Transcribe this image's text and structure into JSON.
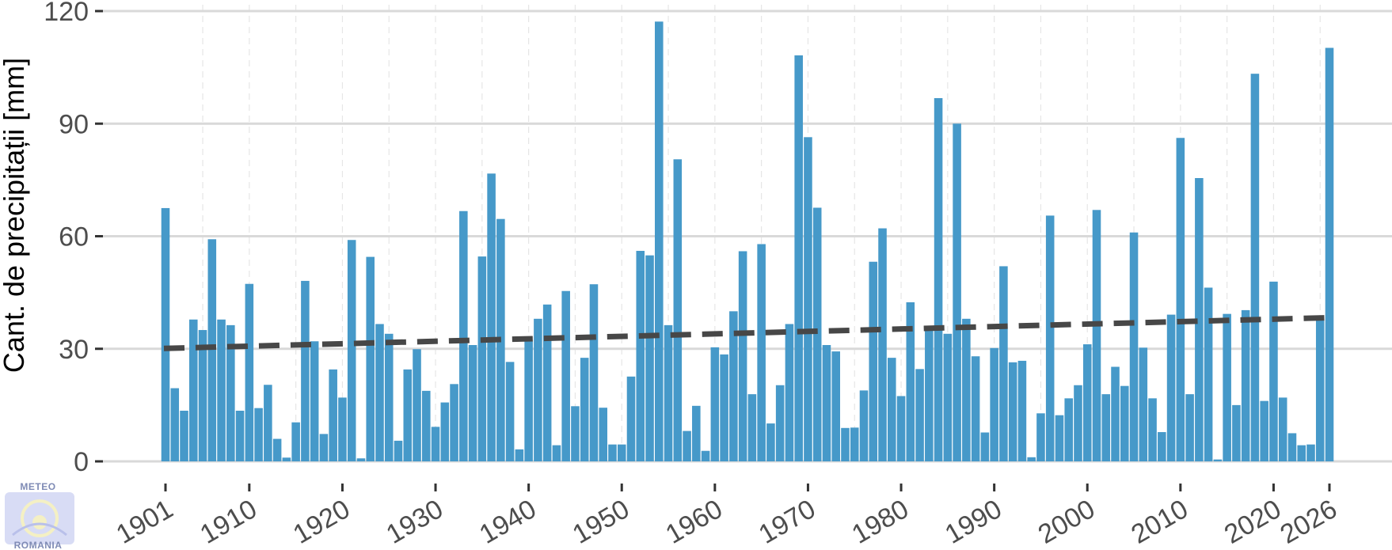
{
  "chart_data": {
    "type": "bar",
    "title": "",
    "xlabel": "",
    "ylabel": "Cant. de precipitații [mm]",
    "ylim": [
      0,
      120
    ],
    "yticks": [
      0,
      30,
      60,
      90,
      120
    ],
    "x_tick_labels": [
      "1901",
      "1910",
      "1920",
      "1930",
      "1940",
      "1950",
      "1960",
      "1970",
      "1980",
      "1990",
      "2000",
      "2010",
      "2020",
      "2026"
    ],
    "grid": true,
    "legend": "none",
    "colors": {
      "bar": "#4699c9",
      "trend": "#474747",
      "grid": "#d9d9d9"
    },
    "x": [
      1901,
      1902,
      1903,
      1904,
      1905,
      1906,
      1907,
      1908,
      1909,
      1910,
      1911,
      1912,
      1913,
      1914,
      1915,
      1916,
      1917,
      1918,
      1919,
      1920,
      1921,
      1922,
      1923,
      1924,
      1925,
      1926,
      1927,
      1928,
      1929,
      1930,
      1931,
      1932,
      1933,
      1934,
      1935,
      1936,
      1937,
      1938,
      1939,
      1940,
      1941,
      1942,
      1943,
      1944,
      1945,
      1946,
      1947,
      1948,
      1949,
      1950,
      1951,
      1952,
      1953,
      1954,
      1955,
      1956,
      1957,
      1958,
      1959,
      1960,
      1961,
      1962,
      1963,
      1964,
      1965,
      1966,
      1967,
      1968,
      1969,
      1970,
      1971,
      1972,
      1973,
      1974,
      1975,
      1976,
      1977,
      1978,
      1979,
      1980,
      1981,
      1982,
      1983,
      1984,
      1985,
      1986,
      1987,
      1988,
      1989,
      1990,
      1991,
      1992,
      1993,
      1994,
      1995,
      1996,
      1997,
      1998,
      1999,
      2000,
      2001,
      2002,
      2003,
      2004,
      2005,
      2006,
      2007,
      2008,
      2009,
      2010,
      2011,
      2012,
      2013,
      2014,
      2015,
      2016,
      2017,
      2018,
      2019,
      2020,
      2021,
      2022,
      2023,
      2024,
      2025,
      2026
    ],
    "values": [
      67.5,
      19.5,
      13.5,
      37.8,
      35,
      59.2,
      37.8,
      36.3,
      13.5,
      47.3,
      14.2,
      20.4,
      6,
      1,
      10.4,
      48.1,
      32,
      7.3,
      24.5,
      17,
      59,
      0.8,
      54.5,
      36.6,
      34,
      5.5,
      24.5,
      29.9,
      18.8,
      9.2,
      15.7,
      20.6,
      66.7,
      31,
      54.6,
      76.7,
      64.6,
      26.5,
      3.2,
      32.1,
      38,
      41.8,
      4.3,
      45.4,
      14.7,
      27.6,
      47.2,
      14.3,
      4.5,
      4.5,
      22.6,
      56.1,
      54.9,
      117.2,
      36.3,
      80.5,
      8.1,
      14.8,
      2.8,
      30.4,
      28.5,
      40,
      56,
      17.9,
      57.9,
      10.1,
      20.3,
      36.6,
      108.2,
      86.4,
      67.6,
      31,
      29.3,
      8.9,
      9,
      18.9,
      53.2,
      62.1,
      27.6,
      17.4,
      42.4,
      24.6,
      35.3,
      96.8,
      34,
      90,
      38,
      28,
      7.7,
      30.2,
      52,
      26.4,
      26.8,
      1.1,
      12.8,
      65.5,
      12.3,
      16.8,
      20.3,
      31.2,
      67,
      17.9,
      25.2,
      20.1,
      61,
      30.3,
      16.8,
      7.8,
      39.1,
      86.2,
      17.9,
      75.5,
      46.3,
      0.5,
      39.3,
      15,
      40.3,
      103.3,
      16.1,
      47.9,
      17,
      7.5,
      4.3,
      4.5,
      37.8,
      110.2
    ],
    "trend": {
      "start": 30.1,
      "end": 38.3
    }
  },
  "logo": {
    "line1": "METEO",
    "line2": "ROMANIA"
  }
}
